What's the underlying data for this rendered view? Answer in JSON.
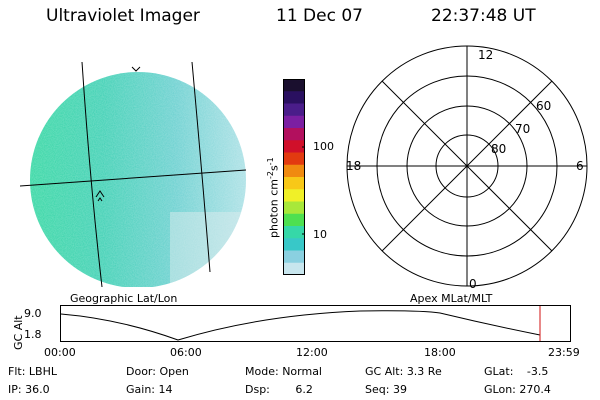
{
  "header": {
    "title": "Ultraviolet Imager",
    "date": "11 Dec 07",
    "time": "22:37:48 UT"
  },
  "colorbar": {
    "label": "photon cm",
    "sup1": "-2",
    "mid": "s",
    "sup2": "-1",
    "ticks": [
      "100",
      "10"
    ],
    "colors": [
      "#1a0f2e",
      "#2a1060",
      "#4a1d8a",
      "#7b1fa2",
      "#b2105e",
      "#d0102a",
      "#e23a10",
      "#f08a10",
      "#f8c818",
      "#f0f028",
      "#a8e83a",
      "#4ee050",
      "#36d8a8",
      "#38c8c8",
      "#8ad0e0",
      "#c8e6ee"
    ]
  },
  "polar": {
    "mlt_labels": {
      "top": "12",
      "left": "18",
      "right": "6",
      "bottom": "0"
    },
    "lat_labels": [
      "60",
      "70",
      "80"
    ]
  },
  "map_labels": {
    "left": "Geographic Lat/Lon",
    "right": "Apex MLat/MLT"
  },
  "altitude_plot": {
    "ylabel": "GC Alt",
    "yticks": [
      "9.0",
      "1.8"
    ],
    "xticks": [
      "00:00",
      "06:00",
      "12:00",
      "18:00",
      "23:59"
    ]
  },
  "info": {
    "row1": [
      {
        "key": "Flt:",
        "val": "LBHL"
      },
      {
        "key": "Door:",
        "val": "Open"
      },
      {
        "key": "Mode:",
        "val": "Normal"
      },
      {
        "key": "GC Alt:",
        "val": "3.3 Re"
      },
      {
        "key": "GLat:",
        "val": "-3.5"
      }
    ],
    "row2": [
      {
        "key": "IP:",
        "val": "36.0"
      },
      {
        "key": "Gain:",
        "val": "14"
      },
      {
        "key": "Dsp:",
        "val": "6.2"
      },
      {
        "key": "Seq:",
        "val": "39"
      },
      {
        "key": "GLon:",
        "val": "270.4"
      }
    ]
  }
}
